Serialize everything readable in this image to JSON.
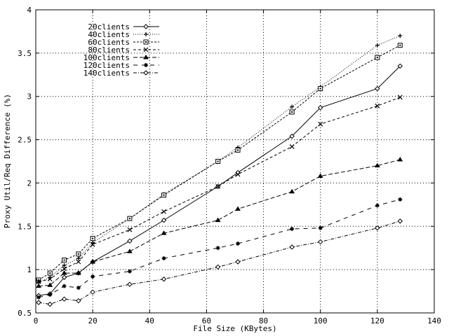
{
  "chart_data": {
    "type": "line",
    "title": "",
    "xlabel": "File Size (KBytes)",
    "ylabel": "Proxy Util/Req Difference (%)",
    "xlim": [
      0,
      140
    ],
    "ylim": [
      0.5,
      4
    ],
    "xticks": [
      0,
      20,
      40,
      60,
      80,
      100,
      120,
      140
    ],
    "yticks": [
      0.5,
      1,
      1.5,
      2,
      2.5,
      3,
      3.5,
      4
    ],
    "xtick_labels": [
      "0",
      "20",
      "40",
      "60",
      "80",
      "100",
      "120",
      "140"
    ],
    "ytick_labels": [
      "0.5",
      "1",
      "1.5",
      "2",
      "2.5",
      "3",
      "3.5",
      "4"
    ],
    "grid": true,
    "legend_position": "upper-left",
    "x": [
      1,
      5,
      10,
      15,
      20,
      33,
      45,
      64,
      71,
      90,
      100,
      120,
      128
    ],
    "series": [
      {
        "name": "20clients",
        "marker": "diamond",
        "dash": "solid",
        "values": [
          0.7,
          0.72,
          0.91,
          0.96,
          1.09,
          1.33,
          1.57,
          1.96,
          2.12,
          2.54,
          2.87,
          3.09,
          3.35
        ]
      },
      {
        "name": "40clients",
        "marker": "plus",
        "dash": "dotted",
        "values": [
          0.85,
          0.91,
          1.05,
          1.13,
          1.31,
          1.59,
          1.87,
          2.25,
          2.41,
          2.88,
          3.11,
          3.59,
          3.7
        ]
      },
      {
        "name": "60clients",
        "marker": "square",
        "dash": "short-dash",
        "values": [
          0.88,
          0.96,
          1.11,
          1.18,
          1.36,
          1.59,
          1.86,
          2.25,
          2.38,
          2.82,
          3.09,
          3.45,
          3.59
        ]
      },
      {
        "name": "80clients",
        "marker": "cross",
        "dash": "dash",
        "values": [
          0.86,
          0.89,
          1.01,
          1.09,
          1.29,
          1.46,
          1.67,
          1.96,
          2.1,
          2.42,
          2.68,
          2.89,
          2.99
        ]
      },
      {
        "name": "100clients",
        "marker": "triangle",
        "dash": "long-dash",
        "values": [
          0.81,
          0.82,
          0.96,
          0.96,
          1.09,
          1.21,
          1.42,
          1.57,
          1.7,
          1.9,
          2.08,
          2.2,
          2.27
        ]
      },
      {
        "name": "120clients",
        "marker": "asterisk",
        "dash": "wide-dash",
        "values": [
          0.68,
          0.71,
          0.81,
          0.79,
          0.92,
          0.98,
          1.13,
          1.25,
          1.3,
          1.47,
          1.48,
          1.74,
          1.81
        ]
      },
      {
        "name": "140clients",
        "marker": "diamond",
        "dash": "dash-dot",
        "values": [
          0.62,
          0.6,
          0.66,
          0.64,
          0.74,
          0.83,
          0.89,
          1.03,
          1.09,
          1.26,
          1.32,
          1.48,
          1.56
        ]
      }
    ]
  },
  "colors": {
    "background": "#ffffff",
    "axis": "#000000",
    "grid": "#000000",
    "series": "#000000"
  }
}
